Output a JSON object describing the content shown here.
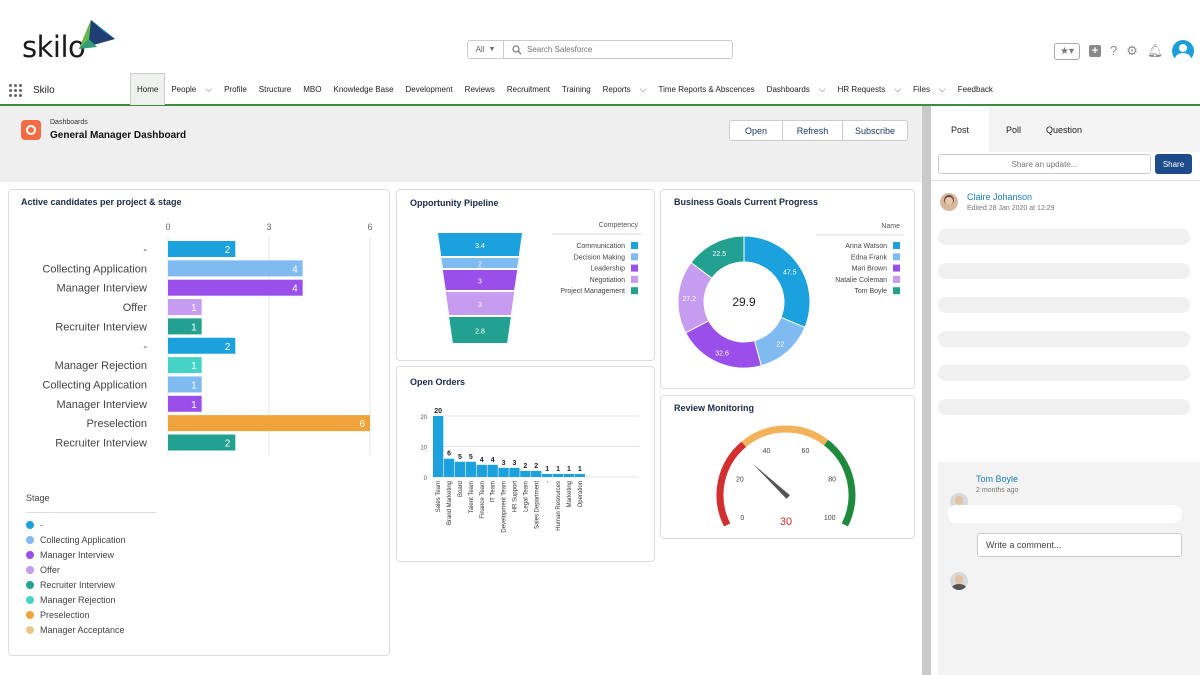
{
  "app": {
    "logo": "skilo",
    "name": "Skilo"
  },
  "search": {
    "scope": "All",
    "placeholder": "Search Salesforce"
  },
  "nav": {
    "items": [
      {
        "label": "Home",
        "active": true,
        "dropdown": false
      },
      {
        "label": "People",
        "dropdown": true
      },
      {
        "label": "Profile",
        "dropdown": false
      },
      {
        "label": "Structure",
        "dropdown": false
      },
      {
        "label": "MBO",
        "dropdown": false
      },
      {
        "label": "Knowledge Base",
        "dropdown": false
      },
      {
        "label": "Development",
        "dropdown": false
      },
      {
        "label": "Reviews",
        "dropdown": false
      },
      {
        "label": "Recruitment",
        "dropdown": false
      },
      {
        "label": "Training",
        "dropdown": false
      },
      {
        "label": "Reports",
        "dropdown": true
      },
      {
        "label": "Time Reports & Abscences",
        "dropdown": false
      },
      {
        "label": "Dashboards",
        "dropdown": true
      },
      {
        "label": "HR Requests",
        "dropdown": true
      },
      {
        "label": "Files",
        "dropdown": true
      },
      {
        "label": "Feedback",
        "dropdown": false
      }
    ]
  },
  "dashboard": {
    "breadcrumb": "Dashboards",
    "title": "General Manager Dashboard",
    "buttons": {
      "open": "Open",
      "refresh": "Refresh",
      "subscribe": "Subscribe"
    }
  },
  "candidates": {
    "title": "Active candidates per project & stage",
    "ticks": [
      "0",
      "3",
      "6"
    ],
    "legend_title": "Stage",
    "legend": [
      {
        "label": "-",
        "color": "#1ba1de"
      },
      {
        "label": "Collecting Application",
        "color": "#7fbaf0"
      },
      {
        "label": "Manager Interview",
        "color": "#9b4fea"
      },
      {
        "label": "Offer",
        "color": "#c59cef"
      },
      {
        "label": "Recruiter Interview",
        "color": "#22a191"
      },
      {
        "label": "Manager Rejection",
        "color": "#45d3c8"
      },
      {
        "label": "Preselection",
        "color": "#f0a33a"
      },
      {
        "label": "Manager Acceptance",
        "color": "#e8c98a"
      }
    ]
  },
  "pipeline": {
    "title": "Opportunity Pipeline",
    "legend_title": "Competency"
  },
  "orders": {
    "title": "Open Orders"
  },
  "goals": {
    "title": "Business Goals Current Progress",
    "legend_title": "Name",
    "center": "29.9"
  },
  "review": {
    "title": "Review Monitoring",
    "value_label": "30"
  },
  "chart_data": [
    {
      "type": "bar",
      "orientation": "horizontal",
      "title": "Active candidates per project & stage",
      "xlim": [
        0,
        6
      ],
      "categories": [
        "-",
        "Collecting Application",
        "Manager Interview",
        "Offer",
        "Recruiter Interview",
        "-",
        "Manager Rejection",
        "Collecting Application",
        "Manager Interview",
        "Preselection",
        "Recruiter Interview"
      ],
      "values": [
        2,
        4,
        4,
        1,
        1,
        2,
        1,
        1,
        1,
        6,
        2
      ],
      "colors": [
        "#1ba1de",
        "#7fbaf0",
        "#9b4fea",
        "#c59cef",
        "#22a191",
        "#1ba1de",
        "#45d3c8",
        "#7fbaf0",
        "#9b4fea",
        "#f0a33a",
        "#22a191"
      ]
    },
    {
      "type": "funnel",
      "title": "Opportunity Pipeline",
      "legend_title": "Competency",
      "categories": [
        "Communication",
        "Decision Making",
        "Leadership",
        "Negotiation",
        "Project Management"
      ],
      "values": [
        3.4,
        2,
        3,
        3,
        2.8
      ],
      "colors": [
        "#1ba1de",
        "#7fbaf0",
        "#9b4fea",
        "#c59cef",
        "#22a191"
      ]
    },
    {
      "type": "bar",
      "title": "Open Orders",
      "ylim": [
        0,
        20
      ],
      "yticks": [
        0,
        10,
        20
      ],
      "categories": [
        "Sales Team",
        "Brand Marketing",
        "Board",
        "Talent Team",
        "Finance Team",
        "IT Team",
        "Development Team",
        "HR Support",
        "Legal Team",
        "Sales Department",
        "-",
        "Human Resources",
        "Marketing",
        "Operation"
      ],
      "values": [
        20,
        6,
        5,
        5,
        4,
        4,
        3,
        3,
        2,
        2,
        1,
        1,
        1,
        1
      ]
    },
    {
      "type": "pie",
      "title": "Business Goals Current Progress",
      "legend_title": "Name",
      "center_label": "29.9",
      "labels": [
        "Anna Watson",
        "Edna Frank",
        "Mari Brown",
        "Natalie Coleman",
        "Tom Boyle"
      ],
      "values": [
        47.5,
        22,
        32.6,
        27.2,
        22.5
      ],
      "colors": [
        "#1ba1de",
        "#7fbaf0",
        "#9b4fea",
        "#c59cef",
        "#22a191"
      ]
    },
    {
      "type": "gauge",
      "title": "Review Monitoring",
      "range": [
        0,
        100
      ],
      "ticks": [
        0,
        20,
        40,
        60,
        80,
        100
      ],
      "value": 30,
      "value_label": "30",
      "bands": [
        {
          "to": 33,
          "color": "#d22f2f"
        },
        {
          "to": 66,
          "color": "#f1b25a"
        },
        {
          "to": 100,
          "color": "#1d8a3c"
        }
      ]
    }
  ],
  "feed": {
    "tabs": {
      "post": "Post",
      "poll": "Poll",
      "question": "Question"
    },
    "share_placeholder": "Share an update...",
    "share_button": "Share",
    "post": {
      "author": "Claire Johanson",
      "meta": "Edited 28 Jan 2020 at 12:29"
    },
    "comment": {
      "author": "Tom Boyle",
      "meta": "2 months ago",
      "placeholder": "Write a comment..."
    }
  }
}
